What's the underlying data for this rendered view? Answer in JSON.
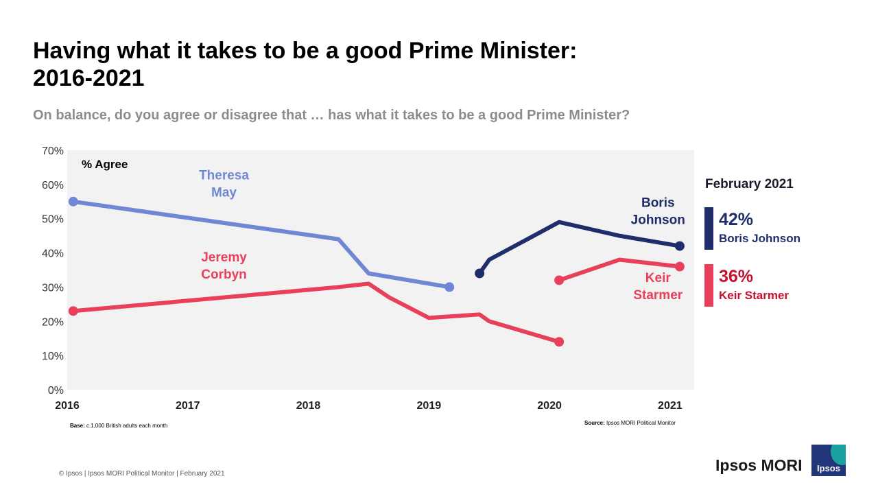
{
  "title_line1": "Having what it takes to be a good Prime Minister:",
  "title_line2": "2016-2021",
  "subtitle": "On balance, do you agree or disagree that … has what it takes to be a good Prime Minister?",
  "chart_data": {
    "type": "line",
    "title": "Having what it takes to be a good Prime Minister: 2016-2021",
    "ylabel": "% Agree",
    "xlim": [
      2016,
      2021.2
    ],
    "ylim": [
      0,
      70
    ],
    "grid": false,
    "x_ticks": [
      2016,
      2017,
      2018,
      2019,
      2020,
      2021
    ],
    "y_ticks": [
      "0%",
      "10%",
      "20%",
      "30%",
      "40%",
      "50%",
      "60%",
      "70%"
    ],
    "series": [
      {
        "name": "Theresa May",
        "label_lines": [
          "Theresa",
          "May"
        ],
        "color": "#7087d6",
        "x": [
          2016.05,
          2018.25,
          2018.5,
          2019.17
        ],
        "y": [
          55,
          44,
          34,
          30
        ]
      },
      {
        "name": "Jeremy Corbyn",
        "label_lines": [
          "Jeremy",
          "Corbyn"
        ],
        "color": "#e8405a",
        "x": [
          2016.05,
          2018.25,
          2018.5,
          2018.67,
          2019.0,
          2019.42,
          2019.5,
          2020.08
        ],
        "y": [
          23,
          30,
          31,
          27,
          21,
          22,
          20,
          14
        ]
      },
      {
        "name": "Boris Johnson",
        "label_lines": [
          "Boris",
          "Johnson"
        ],
        "color": "#1f2d6b",
        "x": [
          2019.42,
          2019.5,
          2020.08,
          2020.58,
          2021.08
        ],
        "y": [
          34,
          38,
          49,
          45,
          42
        ]
      },
      {
        "name": "Keir Starmer",
        "label_lines": [
          "Keir",
          "Starmer"
        ],
        "color": "#e8405a",
        "x": [
          2020.08,
          2020.58,
          2021.08
        ],
        "y": [
          32,
          38,
          36
        ]
      }
    ]
  },
  "legend": {
    "heading": "February 2021",
    "items": [
      {
        "value": "42%",
        "name": "Boris Johnson",
        "color": "#1f2d6b"
      },
      {
        "value": "36%",
        "name": "Keir Starmer",
        "color": "#e8405a",
        "text_color": "#c8102e"
      }
    ]
  },
  "base_label": "Base:",
  "base_text": "c.1,000 British adults each month",
  "source_label": "Source:",
  "source_text": "Ipsos MORI Political Monitor",
  "footer": "© Ipsos | Ipsos MORI  Political Monitor | February 2021",
  "brand": "Ipsos MORI",
  "logo_text": "Ipsos"
}
